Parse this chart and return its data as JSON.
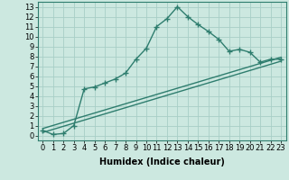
{
  "line1_x": [
    0,
    1,
    2,
    3,
    4,
    5,
    6,
    7,
    8,
    9,
    10,
    11,
    12,
    13,
    14,
    15,
    16,
    17,
    18,
    19,
    20,
    21,
    22,
    23
  ],
  "line1_y": [
    0.5,
    0.1,
    0.2,
    1.0,
    4.7,
    4.9,
    5.3,
    5.7,
    6.3,
    7.7,
    8.8,
    11.0,
    11.8,
    13.0,
    12.0,
    11.2,
    10.5,
    9.7,
    8.5,
    8.7,
    8.4,
    7.4,
    7.7,
    7.7
  ],
  "line2_x": [
    0,
    23
  ],
  "line2_y": [
    0.3,
    7.5
  ],
  "line3_x": [
    0,
    23
  ],
  "line3_y": [
    0.7,
    7.9
  ],
  "color": "#2e7d6e",
  "bg_color": "#cce8e0",
  "grid_color": "#a8cec6",
  "xlabel": "Humidex (Indice chaleur)",
  "xlim": [
    -0.5,
    23.5
  ],
  "ylim": [
    -0.5,
    13.5
  ],
  "xticks": [
    0,
    1,
    2,
    3,
    4,
    5,
    6,
    7,
    8,
    9,
    10,
    11,
    12,
    13,
    14,
    15,
    16,
    17,
    18,
    19,
    20,
    21,
    22,
    23
  ],
  "yticks": [
    0,
    1,
    2,
    3,
    4,
    5,
    6,
    7,
    8,
    9,
    10,
    11,
    12,
    13
  ],
  "marker": "+",
  "markersize": 4,
  "linewidth": 1.0,
  "fontsize_label": 7,
  "fontsize_tick": 6
}
